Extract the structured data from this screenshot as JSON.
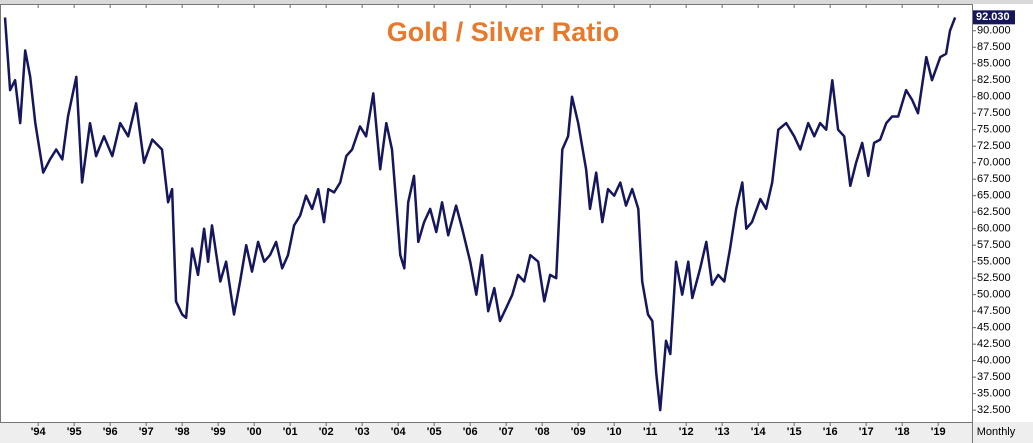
{
  "chart_data": {
    "type": "line",
    "title": "Gold / Silver Ratio",
    "period": "Monthly",
    "color": "#15165c",
    "grid": false,
    "x": [
      1993.08,
      1993.22,
      1993.36,
      1993.5,
      1993.64,
      1993.78,
      1993.92,
      1994.14,
      1994.33,
      1994.5,
      1994.67,
      1994.83,
      1995.06,
      1995.22,
      1995.44,
      1995.61,
      1995.83,
      1996.06,
      1996.28,
      1996.5,
      1996.72,
      1996.94,
      1997.17,
      1997.44,
      1997.61,
      1997.72,
      1997.83,
      1998.0,
      1998.11,
      1998.28,
      1998.44,
      1998.61,
      1998.72,
      1998.83,
      1999.06,
      1999.22,
      1999.44,
      1999.61,
      1999.78,
      1999.94,
      2000.11,
      2000.28,
      2000.44,
      2000.61,
      2000.78,
      2000.94,
      2001.11,
      2001.28,
      2001.44,
      2001.61,
      2001.78,
      2001.94,
      2002.06,
      2002.22,
      2002.39,
      2002.56,
      2002.72,
      2002.94,
      2003.11,
      2003.31,
      2003.5,
      2003.67,
      2003.83,
      2004.06,
      2004.17,
      2004.28,
      2004.44,
      2004.56,
      2004.72,
      2004.89,
      2005.06,
      2005.22,
      2005.39,
      2005.61,
      2005.78,
      2006.0,
      2006.17,
      2006.33,
      2006.5,
      2006.67,
      2006.83,
      2007.0,
      2007.17,
      2007.33,
      2007.5,
      2007.67,
      2007.89,
      2008.06,
      2008.22,
      2008.39,
      2008.56,
      2008.72,
      2008.83,
      2009.0,
      2009.22,
      2009.33,
      2009.5,
      2009.67,
      2009.83,
      2010.0,
      2010.17,
      2010.33,
      2010.5,
      2010.67,
      2010.78,
      2010.94,
      2011.06,
      2011.17,
      2011.28,
      2011.44,
      2011.56,
      2011.72,
      2011.89,
      2012.06,
      2012.17,
      2012.39,
      2012.56,
      2012.72,
      2012.89,
      2013.06,
      2013.22,
      2013.39,
      2013.56,
      2013.67,
      2013.83,
      2014.06,
      2014.22,
      2014.39,
      2014.56,
      2014.78,
      2015.0,
      2015.17,
      2015.39,
      2015.56,
      2015.72,
      2015.89,
      2016.06,
      2016.22,
      2016.39,
      2016.56,
      2016.72,
      2016.89,
      2017.06,
      2017.22,
      2017.39,
      2017.56,
      2017.72,
      2017.89,
      2018.11,
      2018.28,
      2018.44,
      2018.67,
      2018.83,
      2019.06,
      2019.22,
      2019.33,
      2019.47
    ],
    "values": [
      92,
      81,
      82.5,
      76,
      87,
      83,
      76,
      68.5,
      70.5,
      72,
      70.5,
      77,
      83,
      67,
      76,
      71,
      74,
      71,
      76,
      74,
      79,
      70,
      73.5,
      72,
      64,
      66,
      49,
      47,
      46.5,
      57,
      53,
      60,
      55,
      60.5,
      52,
      55,
      47,
      52,
      57.5,
      53.5,
      58,
      55,
      56,
      58,
      54,
      56,
      60.5,
      62,
      65,
      63,
      66,
      61,
      66,
      65.5,
      67,
      71,
      72,
      75.5,
      74,
      80.5,
      69,
      76,
      72,
      56,
      54,
      64,
      68,
      58,
      61,
      63,
      59.5,
      64,
      59,
      63.5,
      60,
      55,
      50,
      56,
      47.5,
      51,
      46,
      48,
      50,
      53,
      52,
      56,
      55,
      49,
      53,
      52.5,
      72,
      74,
      80,
      76,
      69,
      63,
      68.5,
      61,
      66,
      65,
      67,
      63.5,
      66,
      63,
      52,
      47,
      46,
      38,
      32.5,
      43,
      41,
      55,
      50,
      55,
      49.5,
      54,
      58,
      51.5,
      53,
      52,
      57,
      63,
      67,
      60,
      61,
      64.5,
      63,
      67,
      75,
      76,
      74,
      72,
      76,
      74,
      76,
      75,
      82.5,
      75,
      74,
      66.5,
      70,
      73,
      68,
      73,
      73.5,
      76,
      77,
      77,
      81,
      79.5,
      77.5,
      86,
      82.5,
      86,
      86.5,
      90,
      92
    ],
    "last_value": 92.03,
    "last_value_label": "92.030",
    "xlim": [
      1992.94,
      2019.94
    ],
    "ylim": [
      30.7,
      93.9
    ],
    "xticks": [
      {
        "value": 1994,
        "label": "'94"
      },
      {
        "value": 1995,
        "label": "'95"
      },
      {
        "value": 1996,
        "label": "'96"
      },
      {
        "value": 1997,
        "label": "'97"
      },
      {
        "value": 1998,
        "label": "'98"
      },
      {
        "value": 1999,
        "label": "'99"
      },
      {
        "value": 2000,
        "label": "'00"
      },
      {
        "value": 2001,
        "label": "'01"
      },
      {
        "value": 2002,
        "label": "'02"
      },
      {
        "value": 2003,
        "label": "'03"
      },
      {
        "value": 2004,
        "label": "'04"
      },
      {
        "value": 2005,
        "label": "'05"
      },
      {
        "value": 2006,
        "label": "'06"
      },
      {
        "value": 2007,
        "label": "'07"
      },
      {
        "value": 2008,
        "label": "'08"
      },
      {
        "value": 2009,
        "label": "'09"
      },
      {
        "value": 2010,
        "label": "'10"
      },
      {
        "value": 2011,
        "label": "'11"
      },
      {
        "value": 2012,
        "label": "'12"
      },
      {
        "value": 2013,
        "label": "'13"
      },
      {
        "value": 2014,
        "label": "'14"
      },
      {
        "value": 2015,
        "label": "'15"
      },
      {
        "value": 2016,
        "label": "'16"
      },
      {
        "value": 2017,
        "label": "'17"
      },
      {
        "value": 2018,
        "label": "'18"
      },
      {
        "value": 2019,
        "label": "'19"
      }
    ],
    "yticks": [
      {
        "value": 32.5,
        "label": "32.500"
      },
      {
        "value": 35,
        "label": "35.000"
      },
      {
        "value": 37.5,
        "label": "37.500"
      },
      {
        "value": 40,
        "label": "40.000"
      },
      {
        "value": 42.5,
        "label": "42.500"
      },
      {
        "value": 45,
        "label": "45.000"
      },
      {
        "value": 47.5,
        "label": "47.500"
      },
      {
        "value": 50,
        "label": "50.000"
      },
      {
        "value": 52.5,
        "label": "52.500"
      },
      {
        "value": 55,
        "label": "55.000"
      },
      {
        "value": 57.5,
        "label": "57.500"
      },
      {
        "value": 60,
        "label": "60.000"
      },
      {
        "value": 62.5,
        "label": "62.500"
      },
      {
        "value": 65,
        "label": "65.000"
      },
      {
        "value": 67.5,
        "label": "67.500"
      },
      {
        "value": 70,
        "label": "70.000"
      },
      {
        "value": 72.5,
        "label": "72.500"
      },
      {
        "value": 75,
        "label": "75.000"
      },
      {
        "value": 77.5,
        "label": "77.500"
      },
      {
        "value": 80,
        "label": "80.000"
      },
      {
        "value": 82.5,
        "label": "82.500"
      },
      {
        "value": 85,
        "label": "85.000"
      },
      {
        "value": 87.5,
        "label": "87.500"
      },
      {
        "value": 90,
        "label": "90.000"
      }
    ]
  }
}
